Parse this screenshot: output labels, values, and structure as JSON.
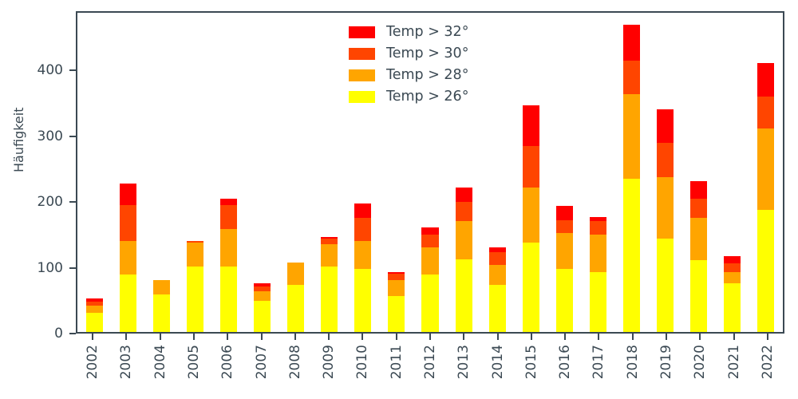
{
  "style": {
    "text_color": "#3b4953",
    "spine_color": "#3b4953",
    "background": "#ffffff"
  },
  "chart_data": {
    "type": "bar",
    "stacked": true,
    "title": "",
    "xlabel": "",
    "ylabel": "Häufigkeit",
    "ylim": [
      0,
      490
    ],
    "yticks": [
      0,
      100,
      200,
      300,
      400
    ],
    "grid": false,
    "legend_position": "upper center, inside plot, no frame",
    "categories": [
      "2002",
      "2003",
      "2004",
      "2005",
      "2006",
      "2007",
      "2008",
      "2009",
      "2010",
      "2011",
      "2012",
      "2013",
      "2014",
      "2015",
      "2016",
      "2017",
      "2018",
      "2019",
      "2020",
      "2021",
      "2022"
    ],
    "series": [
      {
        "name": "Temp > 32°",
        "color": "#ff0000",
        "values": [
          5,
          33,
          0,
          0,
          10,
          5,
          0,
          3,
          22,
          2,
          10,
          22,
          8,
          63,
          21,
          7,
          55,
          52,
          27,
          12,
          51
        ]
      },
      {
        "name": "Temp > 30°",
        "color": "#ff4500",
        "values": [
          7,
          55,
          0,
          3,
          37,
          8,
          0,
          8,
          35,
          10,
          20,
          30,
          19,
          63,
          20,
          20,
          52,
          52,
          30,
          13,
          49
        ]
      },
      {
        "name": "Temp > 28°",
        "color": "#ffa500",
        "values": [
          10,
          52,
          22,
          37,
          58,
          14,
          34,
          35,
          43,
          25,
          42,
          58,
          31,
          85,
          55,
          58,
          130,
          95,
          65,
          17,
          126
        ]
      },
      {
        "name": "Temp > 26°",
        "color": "#ffff00",
        "values": [
          30,
          88,
          58,
          100,
          100,
          48,
          72,
          100,
          97,
          55,
          88,
          112,
          72,
          137,
          97,
          92,
          235,
          143,
          110,
          75,
          187
        ]
      }
    ],
    "stack_order_bottom_to_top": [
      "Temp > 26°",
      "Temp > 28°",
      "Temp > 30°",
      "Temp > 32°"
    ],
    "totals": [
      52,
      228,
      80,
      140,
      205,
      75,
      106,
      146,
      197,
      92,
      160,
      222,
      130,
      348,
      193,
      177,
      472,
      342,
      232,
      117,
      413
    ]
  }
}
